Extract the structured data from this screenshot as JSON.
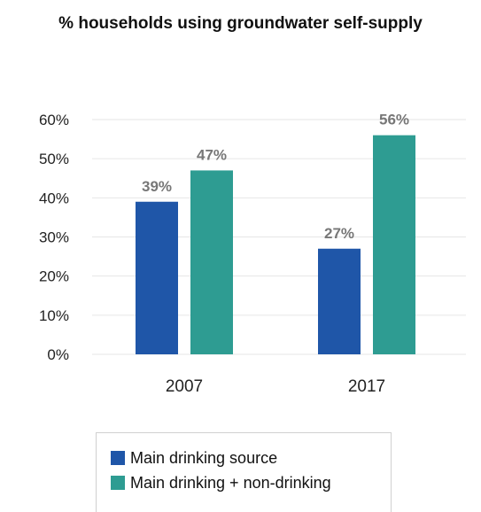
{
  "chart_data": {
    "type": "bar",
    "title": "% households using groundwater self-supply",
    "categories": [
      "2007",
      "2017"
    ],
    "series": [
      {
        "name": "Main drinking source",
        "values": [
          39,
          27
        ],
        "labels": [
          "39%",
          "27%"
        ],
        "color": "#1f56a8"
      },
      {
        "name": "Main drinking + non-drinking",
        "values": [
          47,
          56
        ],
        "labels": [
          "47%",
          "56%"
        ],
        "color": "#2e9c92"
      }
    ],
    "ylim": [
      0,
      60
    ],
    "yticks": [
      0,
      10,
      20,
      30,
      40,
      50,
      60
    ],
    "ytick_labels": [
      "0%",
      "10%",
      "20%",
      "30%",
      "40%",
      "50%",
      "60%"
    ],
    "grid": true,
    "legend_position": "bottom",
    "gridline_color": "#e6e6e6",
    "label_color": "#777777"
  }
}
